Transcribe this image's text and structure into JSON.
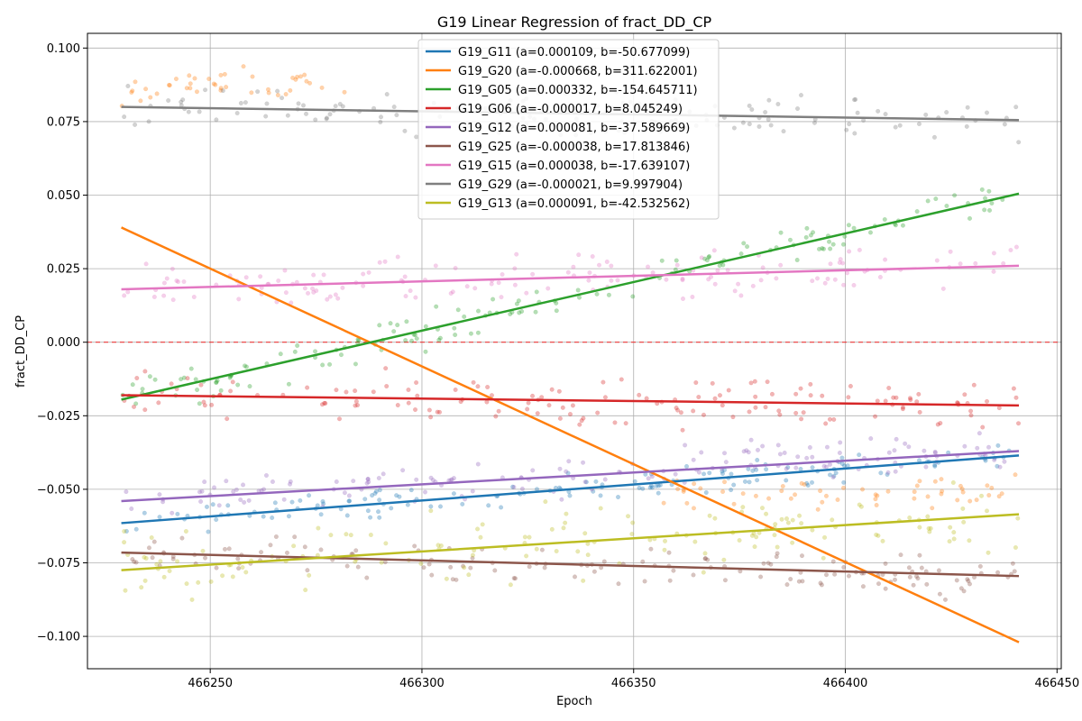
{
  "chart_data": {
    "type": "line",
    "title": "G19 Linear Regression of fract_DD_CP",
    "xlabel": "Epoch",
    "ylabel": "fract_DD_CP",
    "xlim": [
      466221,
      466451
    ],
    "ylim": [
      -0.111,
      0.105
    ],
    "x_ticks": [
      466250,
      466300,
      466350,
      466400,
      466450
    ],
    "x_tick_labels": [
      "466250",
      "466300",
      "466350",
      "466400",
      "466450"
    ],
    "y_ticks": [
      -0.1,
      -0.075,
      -0.05,
      -0.025,
      0.0,
      0.025,
      0.05,
      0.075,
      0.1
    ],
    "y_tick_labels": [
      "−0.100",
      "−0.075",
      "−0.050",
      "−0.025",
      "0.000",
      "0.025",
      "0.050",
      "0.075",
      "0.100"
    ],
    "x_range": [
      466229,
      466441
    ],
    "reference_line": {
      "y": 0.0,
      "color": "#ff0000",
      "style": "dashed"
    },
    "grid": true,
    "legend_position": "top-center",
    "series": [
      {
        "name": "G19_G11 (a=0.000109, b=-50.677099)",
        "color": "#1f77b4",
        "fit_start": -0.0615,
        "fit_end": -0.0385,
        "scatter_spread": 0.004
      },
      {
        "name": "G19_G20 (a=-0.000668, b=311.622001)",
        "color": "#ff7f0e",
        "fit_start": 0.039,
        "fit_end": -0.102,
        "scatter_center": [
          0.088,
          0.088,
          -0.052,
          -0.052
        ],
        "scatter_spread": 0.005
      },
      {
        "name": "G19_G05 (a=0.000332, b=-154.645711)",
        "color": "#2ca02c",
        "fit_start": -0.0195,
        "fit_end": 0.0505,
        "scatter_spread": 0.005
      },
      {
        "name": "G19_G06 (a=-0.000017, b=8.045249)",
        "color": "#d62728",
        "fit_start": -0.018,
        "fit_end": -0.0215,
        "scatter_spread": 0.007
      },
      {
        "name": "G19_G12 (a=0.000081, b=-37.589669)",
        "color": "#9467bd",
        "fit_start": -0.054,
        "fit_end": -0.037,
        "scatter_spread": 0.006
      },
      {
        "name": "G19_G25 (a=-0.000038, b=17.813846)",
        "color": "#8c564b",
        "fit_start": -0.0715,
        "fit_end": -0.0795,
        "scatter_spread": 0.006
      },
      {
        "name": "G19_G15 (a=0.000038, b=-17.639107)",
        "color": "#e377c2",
        "fit_start": 0.018,
        "fit_end": 0.026,
        "scatter_spread": 0.006
      },
      {
        "name": "G19_G29 (a=-0.000021, b=9.997904)",
        "color": "#7f7f7f",
        "fit_start": 0.08,
        "fit_end": 0.0755,
        "scatter_spread": 0.006
      },
      {
        "name": "G19_G13 (a=0.000091, b=-42.532562)",
        "color": "#bcbd22",
        "fit_start": -0.0775,
        "fit_end": -0.0585,
        "scatter_spread": 0.01
      }
    ]
  }
}
